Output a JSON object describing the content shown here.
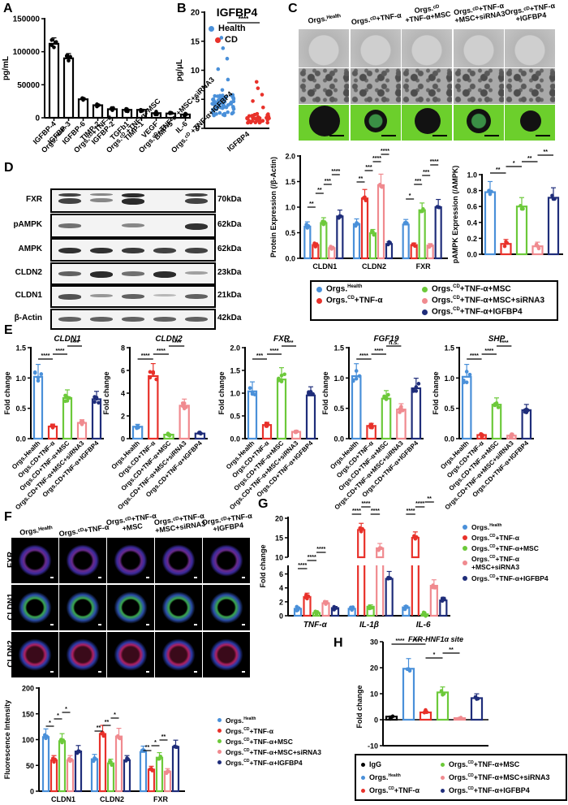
{
  "figure": {
    "panels": [
      "A",
      "B",
      "C",
      "D",
      "E",
      "F",
      "G",
      "H"
    ],
    "colors": {
      "health": "#4a90d9",
      "cd_tnf": "#e8312a",
      "cd_tnf_msc": "#6cc93a",
      "cd_tnf_msc_sirna3": "#f08a8f",
      "cd_tnf_igfbp4": "#1f2d7a",
      "igg": "#000000"
    },
    "groups": {
      "health": "Orgs.Health",
      "cd_tnf": "Orgs.CD+TNF-α",
      "cd_tnf_msc": "Orgs.CD+TNF-α+MSC",
      "cd_tnf_msc_sirna3": "Orgs.CD+TNF-α+MSC+siRNA3",
      "cd_tnf_igfbp4": "Orgs.CD+TNF-α+IGFBP4",
      "igg": "IgG"
    },
    "legend_de": [
      {
        "base": "Orgs.",
        "sup": "Health",
        "rest": ""
      },
      {
        "base": "Orgs.",
        "sup": "CD",
        "rest": "+TNF-α"
      },
      {
        "base": "Orgs.",
        "sup": "CD",
        "rest": "+TNF-α+MSC"
      },
      {
        "base": "Orgs.",
        "sup": "CD",
        "rest": "+TNF-α+MSC+siRNA3"
      },
      {
        "base": "Orgs.",
        "sup": "CD",
        "rest": "+TNF-α+IGFBP4"
      }
    ],
    "legend_g": [
      {
        "base": "Orgs.",
        "sup": "Health",
        "rest": ""
      },
      {
        "base": "Orgs.",
        "sup": "CD",
        "rest": "+TNF-α"
      },
      {
        "base": "Orgs.",
        "sup": "CD",
        "rest": "+TNF-α+MSC"
      },
      {
        "base": "Orgs.",
        "sup": "CD",
        "rest": "+TNF-α +MSC+siRNA3"
      },
      {
        "base": "Orgs.",
        "sup": "CD",
        "rest": "+TNF-α+IGFBP4"
      }
    ],
    "legend_h": [
      {
        "base": "IgG",
        "sup": "",
        "rest": ""
      },
      {
        "base": "Orgs.",
        "sup": "Health",
        "rest": ""
      },
      {
        "base": "Orgs.",
        "sup": "CD",
        "rest": "+TNF-α"
      },
      {
        "base": "Orgs.",
        "sup": "CD",
        "rest": "+TNF-α+MSC"
      },
      {
        "base": "Orgs.",
        "sup": "CD",
        "rest": "+TNF-α+MSC+siRNA3"
      },
      {
        "base": "Orgs.",
        "sup": "CD",
        "rest": "+TNF-α+IGFBP4"
      }
    ],
    "c_headers": [
      {
        "l1": "Orgs.Health",
        "l2": ""
      },
      {
        "l1": "Orgs.CD+TNF-α",
        "l2": ""
      },
      {
        "l1": "Orgs.CD",
        "l2": "+TNF-α+MSC"
      },
      {
        "l1": "Orgs.CD+TNF-α",
        "l2": "+MSC+siRNA3"
      },
      {
        "l1": "Orgs.CD+TNF-α",
        "l2": "+IGFBP4"
      }
    ],
    "d_lane_headers": [
      "Orgs.Health",
      "Orgs.CD+TNF-α",
      "Orgs.CD +TNF-α+MSC",
      "Orgs.CD+TNF-α +MSC+siRNA3",
      "Orgs.CD +TNF-α+IGFBP4"
    ],
    "western_blot": [
      {
        "label": "FXR",
        "kda": "70kDa",
        "intensity": [
          0.8,
          0.35,
          0.95,
          0.0,
          0.8
        ]
      },
      {
        "label": "pAMPK",
        "kda": "62kDa",
        "intensity": [
          0.5,
          0.0,
          0.35,
          0.0,
          0.9
        ]
      },
      {
        "label": "AMPK",
        "kda": "62kDa",
        "intensity": [
          0.9,
          0.9,
          0.85,
          0.8,
          0.8
        ]
      },
      {
        "label": "CLDN2",
        "kda": "23kDa",
        "intensity": [
          0.6,
          0.95,
          0.5,
          0.95,
          0.2
        ]
      },
      {
        "label": "CLDN1",
        "kda": "21kDa",
        "intensity": [
          0.7,
          0.25,
          0.6,
          0.05,
          0.6
        ]
      },
      {
        "label": "β-Actin",
        "kda": "42kDa",
        "intensity": [
          0.6,
          0.6,
          0.6,
          0.6,
          0.6
        ]
      }
    ],
    "f_headers": [
      {
        "l1": "Orgs.Health",
        "l2": ""
      },
      {
        "l1": "Orgs.CD+TNF-α",
        "l2": ""
      },
      {
        "l1": "Orgs.CD+TNF-α",
        "l2": "+MSC"
      },
      {
        "l1": "Orgs.CD+TNF-α",
        "l2": "+MSC+siRNA3"
      },
      {
        "l1": "Orgs.CD+TNF-α",
        "l2": "+IGFBP4"
      }
    ],
    "f_rows": [
      "FXR",
      "CLDN1",
      "CLDN2"
    ]
  },
  "chart_data": [
    {
      "panel": "A",
      "type": "bar",
      "title": "",
      "ylabel": "pg/mL",
      "ylim": [
        0,
        150000
      ],
      "yticks": [
        0,
        50000,
        100000,
        150000
      ],
      "categories": [
        "IGFBP-4",
        "IGFBP-3",
        "IGFBP-6",
        "TIMP-2",
        "IGFBP-2",
        "TGFb1",
        "TIMP-1",
        "VEGF",
        "BMP-5",
        "IL-6"
      ],
      "values": [
        112000,
        90000,
        28000,
        19000,
        13000,
        12000,
        12000,
        7000,
        6500,
        5000
      ]
    },
    {
      "panel": "B",
      "type": "scatter",
      "title": "IGFBP4",
      "ylabel": "pg/μL",
      "ylim": [
        0,
        20
      ],
      "yticks": [
        0,
        5,
        10,
        15,
        20
      ],
      "xlabel": "IGFBP4",
      "series": [
        {
          "name": "Health",
          "color": "#4a90d9",
          "median": 4.0,
          "range": [
            1.2,
            15.6
          ]
        },
        {
          "name": "CD",
          "color": "#e8312a",
          "median": 1.7,
          "range": [
            1.2,
            8.0
          ]
        }
      ],
      "significance": "****"
    },
    {
      "panel": "D-left",
      "type": "bar",
      "ylabel": "Protein Expression (/β-Actin)",
      "ylim": [
        0,
        2.0
      ],
      "yticks": [
        0.0,
        0.5,
        1.0,
        1.5,
        2.0
      ],
      "categories": [
        "CLDN1",
        "CLDN2",
        "FXR"
      ],
      "series": [
        {
          "name": "Orgs.Health",
          "values": [
            0.62,
            0.67,
            0.66
          ]
        },
        {
          "name": "Orgs.CD+TNF-α",
          "values": [
            0.26,
            1.17,
            0.26
          ]
        },
        {
          "name": "Orgs.CD+TNF-α+MSC",
          "values": [
            0.69,
            0.49,
            0.94
          ]
        },
        {
          "name": "Orgs.CD+TNF-α+MSC+siRNA3",
          "values": [
            0.2,
            1.43,
            0.25
          ]
        },
        {
          "name": "Orgs.CD+TNF-α+IGFBP4",
          "values": [
            0.82,
            0.28,
            1.0
          ]
        }
      ],
      "significance": {
        "CLDN1": [
          "**",
          "**",
          "***",
          "****"
        ],
        "CLDN2": [
          "**",
          "***",
          "****",
          "****"
        ],
        "FXR": [
          "*",
          "***",
          "***",
          "****"
        ]
      }
    },
    {
      "panel": "D-right",
      "type": "bar",
      "ylabel": "pAMPK Expression (/AMPK)",
      "ylim": [
        0,
        1.0
      ],
      "yticks": [
        0.0,
        0.2,
        0.4,
        0.6,
        0.8,
        1.0
      ],
      "categories": [
        "Orgs.Health",
        "Orgs.CD+TNF-α",
        "Orgs.CD+TNF-α+MSC",
        "Orgs.CD+TNF-α+MSC+siRNA3",
        "Orgs.CD+TNF-α+IGFBP4"
      ],
      "values": [
        0.78,
        0.13,
        0.6,
        0.1,
        0.71
      ],
      "significance": [
        "**",
        "*",
        "**",
        "**"
      ]
    },
    {
      "panel": "E-CLDN1",
      "type": "bar",
      "title": "CLDN1",
      "ylabel": "Fold change",
      "ylim": [
        0,
        1.5
      ],
      "yticks": [
        0.0,
        0.5,
        1.0,
        1.5
      ],
      "categories": [
        "Orgs.Health",
        "Orgs.CD+TNF-α",
        "Orgs.CD+TNF-α+MSC",
        "Orgs.CD+TNF-α+MSC+siRNA3",
        "Orgs.CD+TNF-α+IGFBP4"
      ],
      "values": [
        1.02,
        0.2,
        0.67,
        0.26,
        0.65
      ],
      "significance": [
        "****",
        "****",
        "****"
      ]
    },
    {
      "panel": "E-CLDN2",
      "type": "bar",
      "title": "CLDN2",
      "ylabel": "Fold change",
      "ylim": [
        0,
        8
      ],
      "yticks": [
        0,
        2,
        4,
        6,
        8
      ],
      "categories": [
        "Orgs.Health",
        "Orgs.CD+TNF-α",
        "Orgs.CD+TNF-α+MSC",
        "Orgs.CD+TNF-α+MSC+siRNA3",
        "Orgs.CD+TNF-α+IGFBP4"
      ],
      "values": [
        1.05,
        5.5,
        0.35,
        2.9,
        0.45
      ],
      "significance": [
        "****",
        "****",
        "****"
      ]
    },
    {
      "panel": "E-FXR",
      "type": "bar",
      "title": "FXR",
      "ylabel": "Fold change",
      "ylim": [
        0,
        2.0
      ],
      "yticks": [
        0.0,
        0.5,
        1.0,
        1.5,
        2.0
      ],
      "categories": [
        "Orgs.Health",
        "Orgs.CD+TNF-α",
        "Orgs.CD+TNF-α+MSC",
        "Orgs.CD+TNF-α+MSC+siRNA3",
        "Orgs.CD+TNF-α+IGFBP4"
      ],
      "values": [
        1.04,
        0.3,
        1.3,
        0.15,
        0.95
      ],
      "significance": [
        "***",
        "****",
        "****"
      ]
    },
    {
      "panel": "E-FGF19",
      "type": "bar",
      "title": "FGF19",
      "ylabel": "Fold change",
      "ylim": [
        0,
        1.5
      ],
      "yticks": [
        0.0,
        0.5,
        1.0,
        1.5
      ],
      "categories": [
        "Orgs.Health",
        "Orgs.CD+TNF-α",
        "Orgs.CD+TNF-α+MSC",
        "Orgs.CD+TNF-α+MSC+siRNA3",
        "Orgs.CD+TNF-α+IGFBP4"
      ],
      "values": [
        1.03,
        0.21,
        0.66,
        0.48,
        0.83
      ],
      "significance": [
        "****",
        "****",
        "n.s."
      ]
    },
    {
      "panel": "E-SHP",
      "type": "bar",
      "title": "SHP",
      "ylabel": "Fold change",
      "ylim": [
        0,
        1.5
      ],
      "yticks": [
        0.0,
        0.5,
        1.0,
        1.5
      ],
      "categories": [
        "Orgs.Health",
        "Orgs.CD+TNF-α",
        "Orgs.CD+TNF-α+MSC",
        "Orgs.CD+TNF-α+MSC+siRNA3",
        "Orgs.CD+TNF-α+IGFBP4"
      ],
      "values": [
        1.02,
        0.06,
        0.56,
        0.05,
        0.47
      ],
      "significance": [
        "****",
        "****",
        "****"
      ]
    },
    {
      "panel": "F",
      "type": "bar",
      "ylabel": "Fluorescence Intensity",
      "ylim": [
        0,
        200
      ],
      "yticks": [
        0,
        50,
        100,
        150,
        200
      ],
      "categories": [
        "CLDN1",
        "CLDN2",
        "FXR"
      ],
      "series": [
        {
          "name": "Orgs.Health",
          "values": [
            105,
            62,
            76
          ]
        },
        {
          "name": "Orgs.CD+TNF-α",
          "values": [
            60,
            111,
            42
          ]
        },
        {
          "name": "Orgs.CD+TNF-α+MSC",
          "values": [
            97,
            54,
            65
          ]
        },
        {
          "name": "Orgs.CD+TNF-α+MSC+siRNA3",
          "values": [
            60,
            106,
            38
          ]
        },
        {
          "name": "Orgs.CD+TNF-α+IGFBP4",
          "values": [
            77,
            60,
            86
          ]
        }
      ],
      "significance": {
        "CLDN1": [
          "*",
          "*",
          "*"
        ],
        "CLDN2": [
          "**",
          "**",
          "*"
        ],
        "FXR": [
          "**",
          "*",
          "**"
        ]
      }
    },
    {
      "panel": "G",
      "type": "bar",
      "ylabel": "Fold change",
      "ylim": [
        0,
        20
      ],
      "yticks": [
        0,
        2,
        4,
        6,
        10,
        15,
        20
      ],
      "axis_break": [
        7,
        10
      ],
      "categories": [
        "TNF-α",
        "IL-1β",
        "IL-6"
      ],
      "series": [
        {
          "name": "Orgs.Health",
          "values": [
            1.0,
            1.0,
            1.2
          ]
        },
        {
          "name": "Orgs.CD+TNF-α",
          "values": [
            2.7,
            17.0,
            15.0
          ]
        },
        {
          "name": "Orgs.CD+TNF-α+MSC",
          "values": [
            0.4,
            1.3,
            0.2
          ]
        },
        {
          "name": "Orgs.CD+TNF-α+MSC+siRNA3",
          "values": [
            1.8,
            12.3,
            4.3
          ]
        },
        {
          "name": "Orgs.CD+TNF-α+IGFBP4",
          "values": [
            1.1,
            5.3,
            2.2
          ]
        }
      ],
      "significance": {
        "TNF-α": [
          "****",
          "****",
          "****"
        ],
        "IL-1β": [
          "****",
          "****",
          "****"
        ],
        "IL-6": [
          "****",
          "****",
          "**"
        ]
      }
    },
    {
      "panel": "H",
      "type": "bar",
      "title": "FXR-HNF1α site",
      "ylabel": "Fold change",
      "ylim": [
        -10,
        30
      ],
      "yticks": [
        -10,
        0,
        10,
        20,
        30
      ],
      "categories": [
        "IgG",
        "Orgs.Health",
        "Orgs.CD+TNF-α",
        "Orgs.CD+TNF-α+MSC",
        "Orgs.CD+TNF-α+MSC+siRNA3",
        "Orgs.CD+TNF-α+IGFBP4"
      ],
      "values": [
        1.2,
        19.6,
        2.8,
        10.5,
        0.6,
        8.3
      ],
      "significance": [
        "****",
        "****",
        "*",
        "**"
      ]
    }
  ]
}
